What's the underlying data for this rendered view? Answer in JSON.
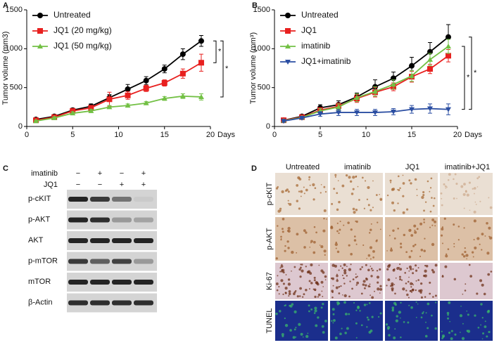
{
  "panel_labels": [
    "A",
    "B",
    "C",
    "D"
  ],
  "chart_data": [
    {
      "type": "line",
      "y_label": "Tumor volume (mm3)",
      "x_label": "Days",
      "x": [
        1,
        3,
        5,
        7,
        9,
        11,
        13,
        15,
        17,
        19
      ],
      "xlim": [
        0,
        20
      ],
      "xticks": [
        0,
        5,
        10,
        15,
        20
      ],
      "ylim": [
        0,
        1500
      ],
      "yticks": [
        0,
        500,
        1000,
        1500
      ],
      "legend": "upper left",
      "series": [
        {
          "name": "Untreated",
          "color": "#000000",
          "marker": "circle",
          "values": [
            90,
            130,
            210,
            260,
            370,
            480,
            590,
            740,
            930,
            1100
          ],
          "errors": [
            20,
            20,
            25,
            30,
            40,
            60,
            50,
            50,
            70,
            70
          ]
        },
        {
          "name": "JQ1 (20 mg/kg)",
          "color": "#e8201f",
          "marker": "square",
          "values": [
            80,
            120,
            200,
            240,
            350,
            400,
            490,
            560,
            680,
            820
          ],
          "errors": [
            15,
            20,
            25,
            30,
            90,
            50,
            40,
            40,
            60,
            110
          ]
        },
        {
          "name": "JQ1 (50 mg/kg)",
          "color": "#72c044",
          "marker": "triangle-up",
          "values": [
            70,
            110,
            170,
            200,
            250,
            270,
            300,
            360,
            390,
            380
          ],
          "errors": [
            10,
            15,
            20,
            20,
            20,
            20,
            20,
            25,
            30,
            40
          ]
        }
      ],
      "annotations": [
        "*",
        "*"
      ]
    },
    {
      "type": "line",
      "y_label": "Tumor volume (mm³)",
      "x_label": "Days",
      "x": [
        1,
        3,
        5,
        7,
        9,
        11,
        13,
        15,
        17,
        19
      ],
      "xlim": [
        0,
        20
      ],
      "xticks": [
        0,
        5,
        10,
        15,
        20
      ],
      "ylim": [
        0,
        1500
      ],
      "yticks": [
        0,
        500,
        1000,
        1500
      ],
      "legend": "upper left",
      "series": [
        {
          "name": "Untreated",
          "color": "#000000",
          "marker": "circle",
          "values": [
            80,
            130,
            240,
            280,
            380,
            510,
            620,
            780,
            960,
            1150
          ],
          "errors": [
            15,
            20,
            40,
            50,
            50,
            90,
            80,
            110,
            120,
            160
          ]
        },
        {
          "name": "JQ1",
          "color": "#e8201f",
          "marker": "square",
          "values": [
            80,
            120,
            210,
            260,
            360,
            440,
            510,
            640,
            740,
            910
          ],
          "errors": [
            15,
            15,
            30,
            40,
            50,
            60,
            50,
            70,
            60,
            80
          ]
        },
        {
          "name": "imatinib",
          "color": "#72c044",
          "marker": "triangle-up",
          "values": [
            75,
            115,
            200,
            250,
            370,
            450,
            540,
            650,
            860,
            1030
          ],
          "errors": [
            15,
            15,
            30,
            40,
            50,
            60,
            60,
            70,
            80,
            90
          ]
        },
        {
          "name": "JQ1+imatinib",
          "color": "#2b4ea2",
          "marker": "triangle-down",
          "values": [
            70,
            110,
            160,
            180,
            180,
            180,
            190,
            220,
            230,
            220
          ],
          "errors": [
            15,
            15,
            30,
            40,
            40,
            40,
            40,
            50,
            60,
            70
          ]
        }
      ],
      "annotations": [
        "*",
        "*"
      ]
    }
  ],
  "western_blot": {
    "treatments": [
      {
        "name": "imatinib",
        "signs": [
          "−",
          "+",
          "−",
          "+"
        ]
      },
      {
        "name": "JQ1",
        "signs": [
          "−",
          "−",
          "+",
          "+"
        ]
      }
    ],
    "proteins": [
      "p-cKIT",
      "p-AKT",
      "AKT",
      "p-mTOR",
      "mTOR",
      "β-Actin"
    ]
  },
  "histology": {
    "columns": [
      "Untreated",
      "imatinib",
      "JQ1",
      "imatinib+JQ1"
    ],
    "rows": [
      "p-cKIT",
      "p-AKT",
      "Ki-67",
      "TUNEL"
    ]
  }
}
